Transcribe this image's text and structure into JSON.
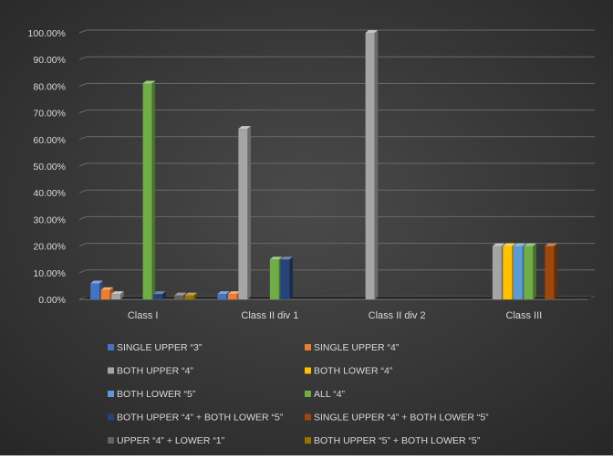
{
  "chart_data": {
    "type": "bar",
    "title": "",
    "xlabel": "",
    "ylabel": "",
    "ylim": [
      0,
      100
    ],
    "y_ticks": [
      "0.00%",
      "10.00%",
      "20.00%",
      "30.00%",
      "40.00%",
      "50.00%",
      "60.00%",
      "70.00%",
      "80.00%",
      "90.00%",
      "100.00%"
    ],
    "grid": true,
    "legend_position": "bottom",
    "categories": [
      "Class I",
      "Class II div 1",
      "Class II div 2",
      "Class III"
    ],
    "series": [
      {
        "name": "SINGLE UPPER “3”",
        "color": "#4472c4",
        "values": [
          6,
          2,
          0,
          0
        ]
      },
      {
        "name": "SINGLE UPPER “4”",
        "color": "#ed7d31",
        "values": [
          3.5,
          2,
          0,
          0
        ]
      },
      {
        "name": "BOTH UPPER “4”",
        "color": "#a5a5a5",
        "values": [
          2,
          64,
          100,
          20
        ]
      },
      {
        "name": "BOTH LOWER “4”",
        "color": "#ffc000",
        "values": [
          0,
          0,
          0,
          20
        ]
      },
      {
        "name": "BOTH LOWER “5”",
        "color": "#5b9bd5",
        "values": [
          0,
          0,
          0,
          20
        ]
      },
      {
        "name": "ALL “4”",
        "color": "#70ad47",
        "values": [
          81,
          15,
          0,
          20
        ]
      },
      {
        "name": "BOTH UPPER “4” + BOTH LOWER “5”",
        "color": "#264478",
        "values": [
          2,
          15,
          0,
          0
        ]
      },
      {
        "name": "SINGLE UPPER “4” + BOTH LOWER “5”",
        "color": "#9e480e",
        "values": [
          0,
          0,
          0,
          20
        ]
      },
      {
        "name": "UPPER “4” + LOWER “1”",
        "color": "#636363",
        "values": [
          1.5,
          0,
          0,
          0
        ]
      },
      {
        "name": "BOTH UPPER “5” + BOTH LOWER “5”",
        "color": "#997300",
        "values": [
          1.5,
          0,
          0,
          0
        ]
      }
    ]
  }
}
